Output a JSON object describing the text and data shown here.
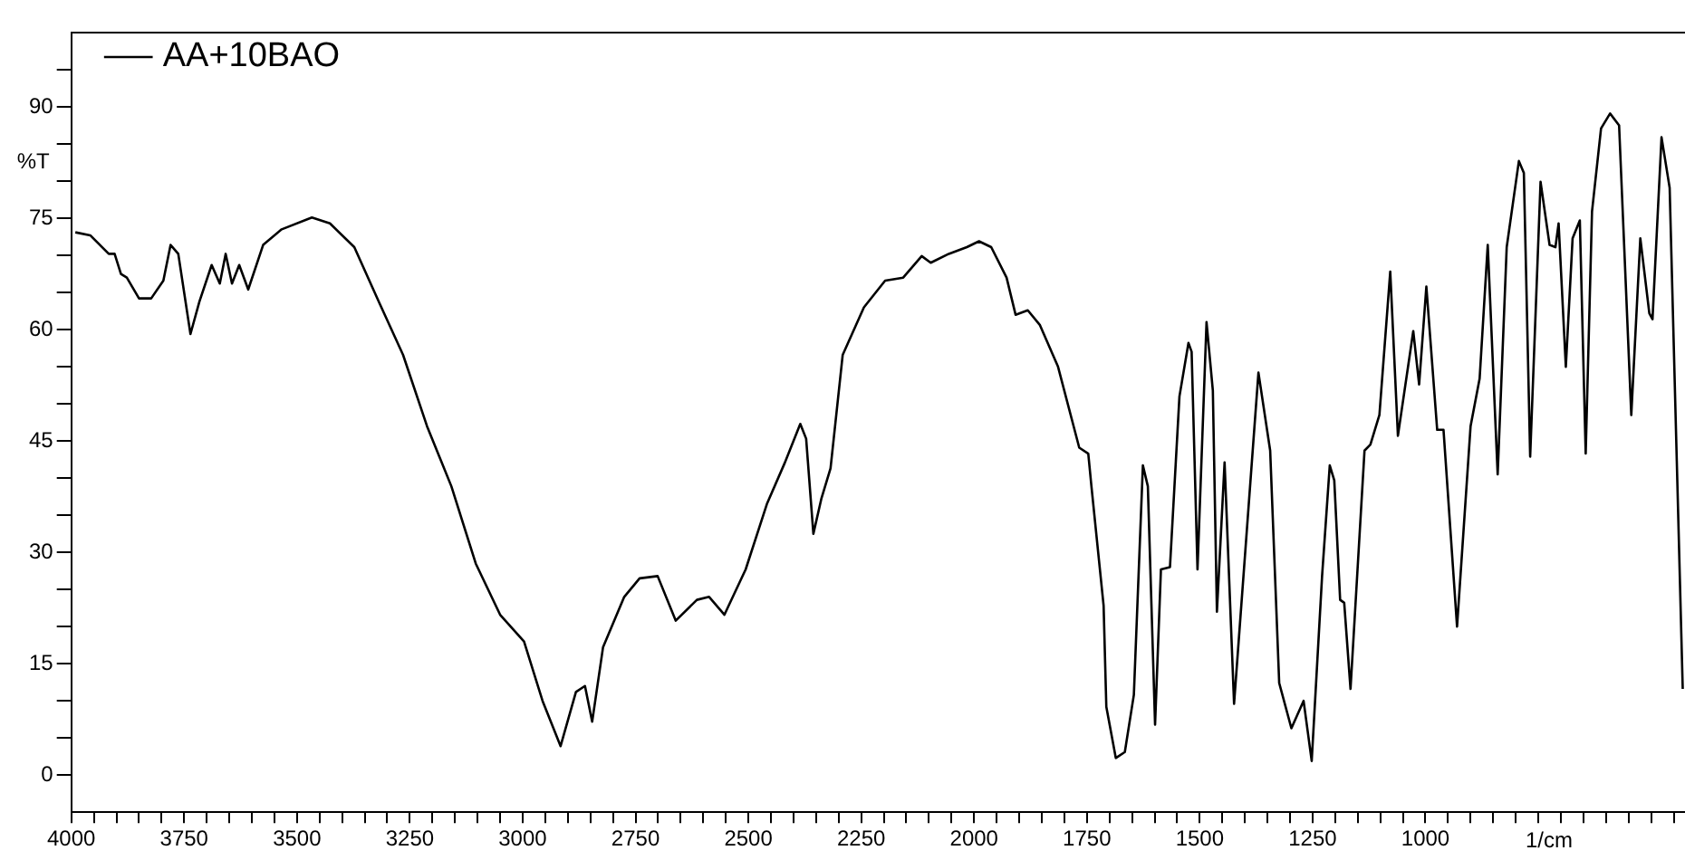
{
  "chart_data": {
    "type": "line",
    "xlabel": "1/cm",
    "ylabel": "%T",
    "legend": "top left",
    "marker": "none",
    "line_style": "solid",
    "grid": false,
    "xlim": [
      4000,
      425
    ],
    "ylim": [
      -5,
      100
    ],
    "xticks": [
      4000,
      {
        "value": 3950,
        "label": null
      },
      {
        "value": 3900,
        "label": null
      },
      {
        "value": 3850,
        "label": null
      },
      {
        "value": 3800,
        "label": null
      },
      3750,
      {
        "value": 3700,
        "label": null
      },
      {
        "value": 3650,
        "label": null
      },
      {
        "value": 3600,
        "label": null
      },
      {
        "value": 3550,
        "label": null
      },
      3500,
      {
        "value": 3450,
        "label": null
      },
      {
        "value": 3400,
        "label": null
      },
      {
        "value": 3350,
        "label": null
      },
      {
        "value": 3300,
        "label": null
      },
      3250,
      {
        "value": 3200,
        "label": null
      },
      {
        "value": 3150,
        "label": null
      },
      {
        "value": 3100,
        "label": null
      },
      {
        "value": 3050,
        "label": null
      },
      3000,
      {
        "value": 2950,
        "label": null
      },
      {
        "value": 2900,
        "label": null
      },
      {
        "value": 2850,
        "label": null
      },
      {
        "value": 2800,
        "label": null
      },
      2750,
      {
        "value": 2700,
        "label": null
      },
      {
        "value": 2650,
        "label": null
      },
      {
        "value": 2600,
        "label": null
      },
      {
        "value": 2550,
        "label": null
      },
      2500,
      {
        "value": 2450,
        "label": null
      },
      {
        "value": 2400,
        "label": null
      },
      {
        "value": 2350,
        "label": null
      },
      {
        "value": 2300,
        "label": null
      },
      2250,
      {
        "value": 2200,
        "label": null
      },
      {
        "value": 2150,
        "label": null
      },
      {
        "value": 2100,
        "label": null
      },
      {
        "value": 2050,
        "label": null
      },
      2000,
      {
        "value": 1950,
        "label": null
      },
      {
        "value": 1900,
        "label": null
      },
      {
        "value": 1850,
        "label": null
      },
      {
        "value": 1800,
        "label": null
      },
      1750,
      {
        "value": 1700,
        "label": null
      },
      {
        "value": 1650,
        "label": null
      },
      {
        "value": 1600,
        "label": null
      },
      {
        "value": 1550,
        "label": null
      },
      1500,
      {
        "value": 1450,
        "label": null
      },
      {
        "value": 1400,
        "label": null
      },
      {
        "value": 1350,
        "label": null
      },
      {
        "value": 1300,
        "label": null
      },
      1250,
      {
        "value": 1200,
        "label": null
      },
      {
        "value": 1150,
        "label": null
      },
      {
        "value": 1100,
        "label": null
      },
      {
        "value": 1050,
        "label": null
      },
      1000,
      {
        "value": 950,
        "label": null
      },
      {
        "value": 900,
        "label": null
      },
      {
        "value": 850,
        "label": null
      },
      {
        "value": 800,
        "label": null
      },
      {
        "value": 750,
        "label": null
      },
      {
        "value": 700,
        "label": null
      },
      {
        "value": 650,
        "label": null
      },
      {
        "value": 600,
        "label": null
      },
      {
        "value": 550,
        "label": null
      },
      {
        "value": 500,
        "label": null
      },
      {
        "value": 450,
        "label": null
      }
    ],
    "yticks": [
      0,
      {
        "value": 5,
        "label": null
      },
      {
        "value": 10,
        "label": null
      },
      15,
      {
        "value": 20,
        "label": null
      },
      {
        "value": 25,
        "label": null
      },
      30,
      {
        "value": 35,
        "label": null
      },
      {
        "value": 40,
        "label": null
      },
      45,
      {
        "value": 50,
        "label": null
      },
      {
        "value": 55,
        "label": null
      },
      60,
      {
        "value": 65,
        "label": null
      },
      {
        "value": 70,
        "label": null
      },
      75,
      {
        "value": 80,
        "label": null
      },
      {
        "value": 85,
        "label": null
      },
      90,
      {
        "value": 95,
        "label": null
      }
    ],
    "x": [
      3991,
      3958,
      3917,
      3904,
      3890,
      3877,
      3850,
      3823,
      3796,
      3780,
      3763,
      3736,
      3716,
      3689,
      3671,
      3658,
      3644,
      3628,
      3608,
      3575,
      3534,
      3467,
      3427,
      3373,
      3319,
      3265,
      3212,
      3158,
      3104,
      3050,
      2997,
      2956,
      2916,
      2882,
      2862,
      2846,
      2822,
      2775,
      2741,
      2701,
      2661,
      2614,
      2587,
      2553,
      2506,
      2459,
      2419,
      2385,
      2372,
      2356,
      2338,
      2318,
      2291,
      2244,
      2197,
      2157,
      2116,
      2096,
      2056,
      2016,
      1989,
      1962,
      1928,
      1908,
      1881,
      1854,
      1814,
      1767,
      1747,
      1740,
      1713,
      1707,
      1686,
      1666,
      1646,
      1626,
      1615,
      1599,
      1586,
      1566,
      1545,
      1525,
      1518,
      1505,
      1485,
      1471,
      1462,
      1445,
      1424,
      1370,
      1344,
      1324,
      1297,
      1270,
      1252,
      1229,
      1212,
      1202,
      1189,
      1180,
      1166,
      1135,
      1122,
      1102,
      1078,
      1061,
      1027,
      1014,
      998,
      974,
      960,
      930,
      900,
      880,
      862,
      840,
      820,
      793,
      782,
      768,
      745,
      725,
      712,
      705,
      689,
      674,
      658,
      645,
      631,
      611,
      591,
      571,
      544,
      524,
      504,
      497,
      477,
      459,
      430
    ],
    "series": [
      {
        "name": "AA+10BAO",
        "color": "#000000",
        "values": [
          73.1,
          72.7,
          70.2,
          70.2,
          67.5,
          67,
          64.2,
          64.2,
          66.6,
          71.4,
          70.2,
          59.4,
          63.8,
          68.7,
          66.2,
          70.2,
          66.2,
          68.7,
          65.4,
          71.4,
          73.5,
          75.1,
          74.3,
          71.1,
          63.8,
          56.6,
          47,
          38.9,
          28.5,
          21.6,
          18,
          10,
          3.9,
          11.2,
          12,
          7.2,
          17.2,
          24,
          26.5,
          26.8,
          20.8,
          23.6,
          24,
          21.6,
          27.7,
          36.5,
          42.1,
          47.3,
          45.3,
          32.5,
          37.3,
          41.3,
          56.6,
          63,
          66.6,
          67,
          69.9,
          69,
          70.2,
          71.1,
          71.9,
          71.1,
          67,
          62,
          62.6,
          60.6,
          55,
          44.1,
          43.3,
          38.9,
          22.8,
          9.2,
          2.3,
          3.1,
          10.8,
          41.7,
          38.9,
          6.8,
          27.7,
          28,
          51,
          58.2,
          57,
          27.7,
          61,
          51.8,
          22,
          42.1,
          9.6,
          54.2,
          43.7,
          12.4,
          6.3,
          10,
          1.9,
          26.8,
          41.7,
          39.7,
          23.6,
          23.2,
          11.6,
          43.7,
          44.5,
          48.5,
          67.8,
          45.7,
          59.8,
          52.6,
          65.8,
          46.5,
          46.5,
          20,
          47,
          53.4,
          71.4,
          40.5,
          71.1,
          82.7,
          81.1,
          42.9,
          79.9,
          71.4,
          71.1,
          74.3,
          55,
          72.3,
          74.7,
          43.3,
          75.9,
          87.1,
          89.1,
          87.5,
          48.5,
          72.3,
          62.2,
          61.4,
          85.9,
          79.1,
          11.6
        ]
      }
    ]
  }
}
